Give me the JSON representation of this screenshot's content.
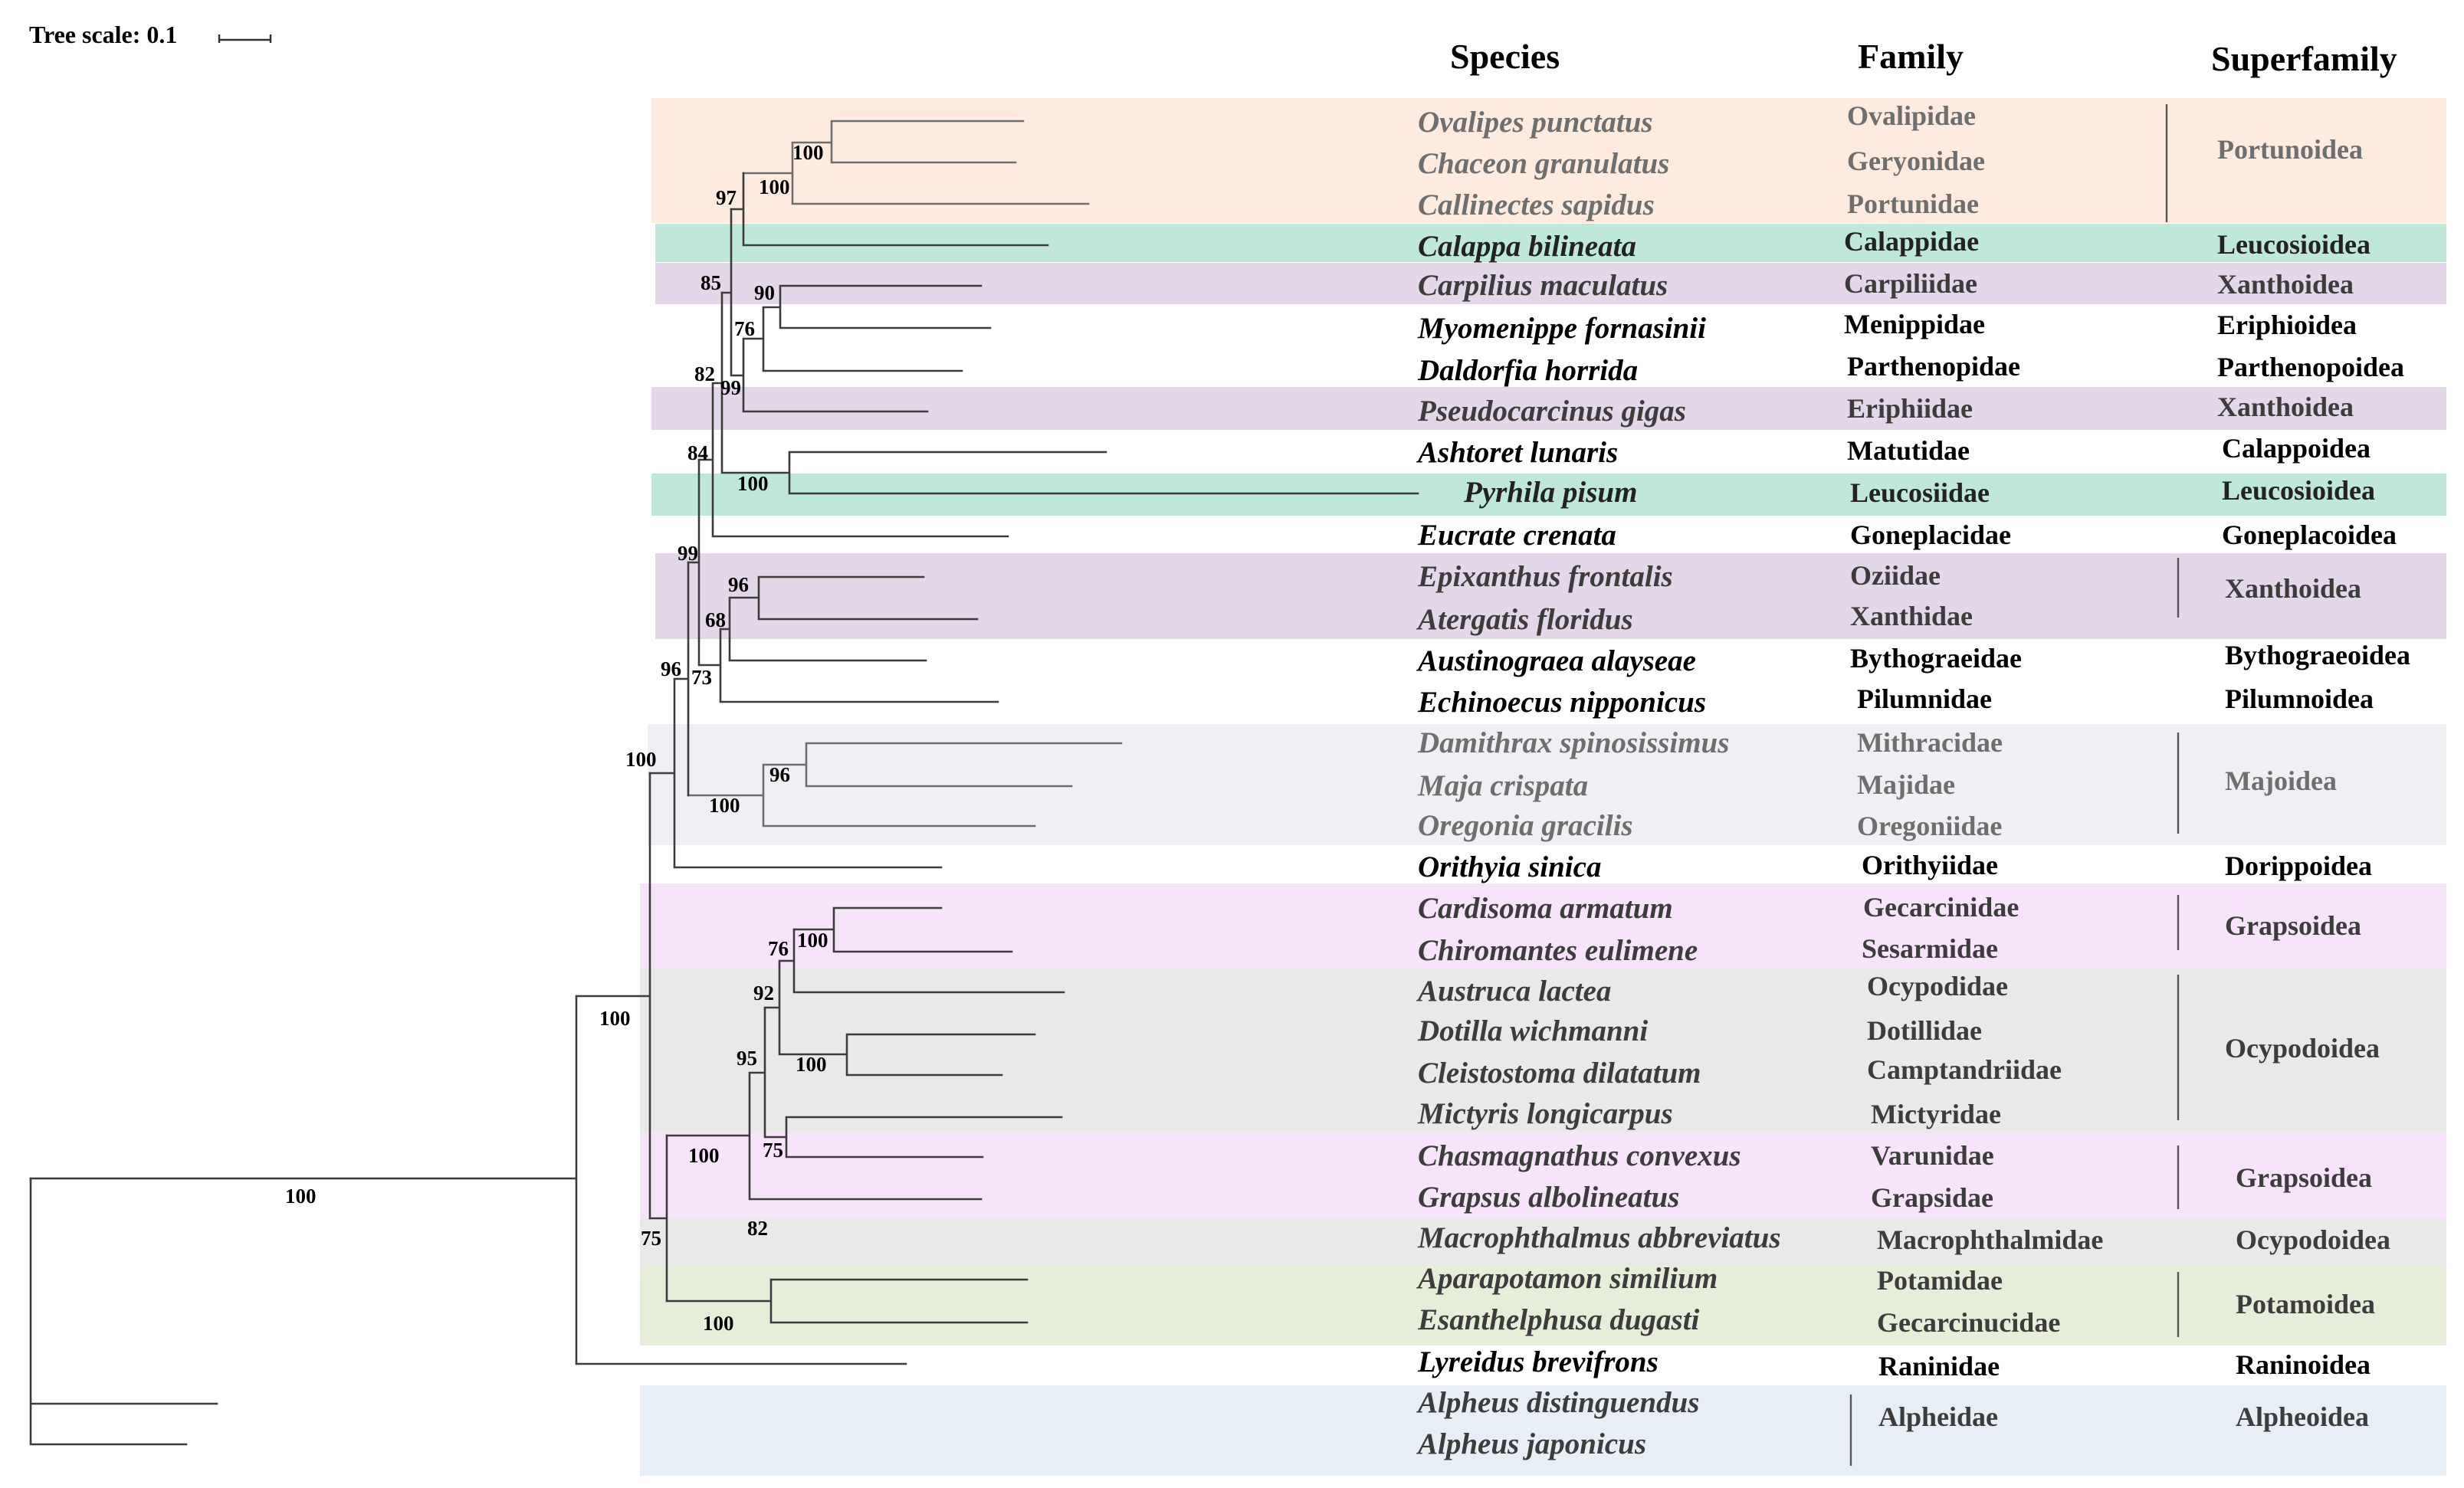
{
  "tree_scale_label": "Tree scale: 0.1",
  "headers": {
    "species": "Species",
    "family": "Family",
    "superfamily": "Superfamily"
  },
  "colors": {
    "portunoidea": "#FDEBE0",
    "leucosioidea": "#BFE8D9",
    "xanthoidea": "#E4D7EA",
    "majoidea": "#F1EFF3",
    "grapsoidea": "#F7E4FA",
    "ocypodoidea": "#E9E9E7",
    "potamoidea": "#E6EEDA",
    "alpheoidea": "#E7EEF6",
    "gray_text": "#6E6E6E",
    "dark_text": "#3C3C3C"
  },
  "taxa": [
    {
      "species": "Ovalipes punctatus",
      "family": "Ovalipidae"
    },
    {
      "species": "Chaceon granulatus",
      "family": "Geryonidae"
    },
    {
      "species": "Callinectes sapidus",
      "family": "Portunidae"
    },
    {
      "species": "Calappa bilineata",
      "family": "Calappidae"
    },
    {
      "species": "Carpilius maculatus",
      "family": "Carpiliidae"
    },
    {
      "species": "Myomenippe fornasinii",
      "family": "Menippidae"
    },
    {
      "species": "Daldorfia horrida",
      "family": "Parthenopidae"
    },
    {
      "species": "Pseudocarcinus gigas",
      "family": "Eriphiidae"
    },
    {
      "species": "Ashtoret lunaris",
      "family": "Matutidae"
    },
    {
      "species": "Pyrhila pisum",
      "family": "Leucosiidae"
    },
    {
      "species": "Eucrate crenata",
      "family": "Goneplacidae"
    },
    {
      "species": "Epixanthus frontalis",
      "family": "Oziidae"
    },
    {
      "species": "Atergatis floridus",
      "family": "Xanthidae"
    },
    {
      "species": "Austinograea alayseae",
      "family": "Bythograeidae"
    },
    {
      "species": "Echinoecus nipponicus",
      "family": "Pilumnidae"
    },
    {
      "species": "Damithrax spinosissimus",
      "family": "Mithracidae"
    },
    {
      "species": "Maja crispata",
      "family": "Majidae"
    },
    {
      "species": "Oregonia gracilis",
      "family": "Oregoniidae"
    },
    {
      "species": "Orithyia sinica",
      "family": "Orithyiidae"
    },
    {
      "species": "Cardisoma armatum",
      "family": "Gecarcinidae"
    },
    {
      "species": "Chiromantes eulimene",
      "family": "Sesarmidae"
    },
    {
      "species": "Austruca lactea",
      "family": "Ocypodidae"
    },
    {
      "species": "Dotilla wichmanni",
      "family": "Dotillidae"
    },
    {
      "species": "Cleistostoma dilatatum",
      "family": "Camptandriidae"
    },
    {
      "species": "Mictyris longicarpus",
      "family": "Mictyridae"
    },
    {
      "species": "Chasmagnathus convexus",
      "family": "Varunidae"
    },
    {
      "species": "Grapsus albolineatus",
      "family": "Grapsidae"
    },
    {
      "species": "Macrophthalmus abbreviatus",
      "family": "Macrophthalmidae"
    },
    {
      "species": "Aparapotamon similium",
      "family": "Potamidae"
    },
    {
      "species": "Esanthelphusa dugasti",
      "family": "Gecarcinucidae"
    },
    {
      "species": "Lyreidus brevifrons",
      "family": "Raninidae"
    },
    {
      "species": "Alpheus distinguendus",
      "family": "Alpheidae"
    },
    {
      "species": "Alpheus japonicus",
      "family": ""
    }
  ],
  "superfamilies": [
    "Portunoidea",
    "Leucosioidea",
    "Xanthoidea",
    "Eriphioidea",
    "Parthenopoidea",
    "Xanthoidea",
    "Calappoidea",
    "Leucosioidea",
    "Goneplacoidea",
    "Xanthoidea",
    "Bythograeoidea",
    "Pilumnoidea",
    "Majoidea",
    "Dorippoidea",
    "Grapsoidea",
    "Ocypodoidea",
    "Grapsoidea",
    "Ocypodoidea",
    "Potamoidea",
    "Raninoidea",
    "Alpheoidea"
  ],
  "bootstrap": [
    "100",
    "100",
    "97",
    "90",
    "85",
    "76",
    "82",
    "99",
    "84",
    "100",
    "99",
    "96",
    "68",
    "96",
    "73",
    "100",
    "96",
    "100",
    "100",
    "76",
    "100",
    "92",
    "95",
    "100",
    "75",
    "100",
    "82",
    "75",
    "100",
    "100"
  ]
}
